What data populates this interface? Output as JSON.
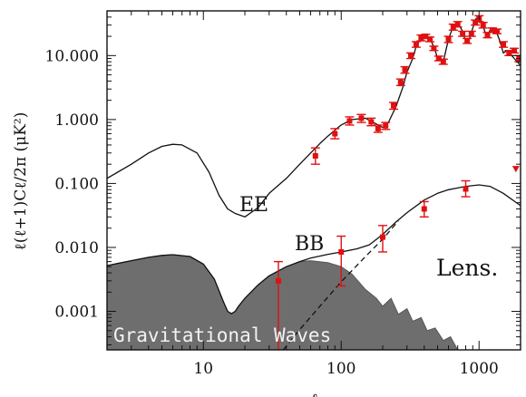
{
  "chart_data": {
    "type": "line",
    "title": "",
    "xlabel": "ℓ",
    "ylabel": "ℓ(ℓ+1)Cℓ/2π (μK²)",
    "xscale": "log",
    "yscale": "log",
    "xlim": [
      2,
      2000
    ],
    "ylim": [
      0.00025,
      50
    ],
    "x_ticks": [
      10,
      100,
      1000
    ],
    "x_tick_labels": [
      "10",
      "100",
      "1000"
    ],
    "y_ticks": [
      0.001,
      0.01,
      0.1,
      1,
      10
    ],
    "y_tick_labels": [
      "0.001",
      "0.010",
      "0.100",
      "1.000",
      "10.000"
    ],
    "annotations": [
      "EE",
      "BB",
      "Lens.",
      "Gravitational Waves"
    ],
    "series": [
      {
        "name": "EE",
        "style": "solid",
        "x": [
          2,
          3,
          4,
          5,
          6,
          7,
          9,
          11,
          13,
          15,
          17,
          20,
          25,
          30,
          40,
          50,
          60,
          70,
          80,
          100,
          120,
          150,
          180,
          200,
          220,
          250,
          280,
          300,
          330,
          350,
          380,
          400,
          450,
          480,
          500,
          550,
          600,
          650,
          700,
          750,
          800,
          850,
          900,
          950,
          1000,
          1050,
          1100,
          1150,
          1200,
          1300,
          1400,
          1500,
          1600,
          1800,
          2000
        ],
        "y": [
          0.12,
          0.2,
          0.3,
          0.38,
          0.41,
          0.4,
          0.3,
          0.15,
          0.065,
          0.04,
          0.034,
          0.03,
          0.042,
          0.07,
          0.12,
          0.2,
          0.3,
          0.42,
          0.55,
          0.82,
          1.0,
          1.05,
          0.85,
          0.75,
          0.9,
          1.6,
          3.2,
          5.5,
          9,
          14,
          19,
          21,
          17,
          12,
          9,
          8,
          18,
          29,
          33,
          25,
          17,
          18,
          27,
          38,
          40,
          33,
          24,
          20,
          25,
          27,
          18,
          11,
          12,
          9,
          7
        ]
      },
      {
        "name": "BB",
        "style": "solid",
        "x": [
          2,
          3,
          4,
          5,
          6,
          8,
          10,
          12,
          14,
          15,
          16,
          17,
          18,
          20,
          25,
          30,
          40,
          50,
          60,
          80,
          100,
          130,
          160,
          200,
          250,
          300,
          400,
          500,
          600,
          800,
          1000,
          1200,
          1500,
          2000
        ],
        "y": [
          0.0052,
          0.0062,
          0.007,
          0.0075,
          0.0077,
          0.0072,
          0.0055,
          0.0032,
          0.0014,
          0.001,
          0.00092,
          0.001,
          0.0012,
          0.0016,
          0.0026,
          0.0036,
          0.005,
          0.006,
          0.0068,
          0.0078,
          0.0085,
          0.0095,
          0.011,
          0.016,
          0.025,
          0.035,
          0.055,
          0.07,
          0.08,
          0.09,
          0.095,
          0.09,
          0.07,
          0.045
        ]
      },
      {
        "name": "Lens.",
        "style": "dashed",
        "x": [
          38,
          50,
          70,
          100,
          150,
          200,
          260
        ],
        "y": [
          0.00025,
          0.00052,
          0.0012,
          0.0029,
          0.0072,
          0.0135,
          0.026
        ]
      },
      {
        "name": "Gravitational Waves",
        "style": "filled",
        "x": [
          2,
          3,
          4,
          5,
          6,
          8,
          10,
          12,
          14,
          15,
          16,
          17,
          18,
          20,
          25,
          30,
          40,
          50,
          60,
          80,
          100,
          120,
          150,
          180,
          200,
          230,
          260,
          300,
          330,
          380,
          420,
          480,
          550,
          620,
          700
        ],
        "y": [
          0.0052,
          0.0062,
          0.007,
          0.0075,
          0.0077,
          0.0072,
          0.0055,
          0.0032,
          0.0014,
          0.001,
          0.00092,
          0.001,
          0.0012,
          0.0016,
          0.0026,
          0.0036,
          0.005,
          0.006,
          0.0062,
          0.0058,
          0.005,
          0.0038,
          0.0022,
          0.0016,
          0.0012,
          0.0016,
          0.0009,
          0.0011,
          0.0007,
          0.0008,
          0.0005,
          0.00055,
          0.00035,
          0.0004,
          0.00025
        ]
      }
    ],
    "points": [
      {
        "x": 35,
        "y": 0.003,
        "lo": 0.00025,
        "hi": 0.006
      },
      {
        "x": 100,
        "y": 0.0085,
        "lo": 0.0025,
        "hi": 0.015
      },
      {
        "x": 200,
        "y": 0.0145,
        "lo": 0.0085,
        "hi": 0.022
      },
      {
        "x": 400,
        "y": 0.04,
        "lo": 0.03,
        "hi": 0.052
      },
      {
        "x": 800,
        "y": 0.082,
        "lo": 0.062,
        "hi": 0.11
      },
      {
        "x": 65,
        "y": 0.27,
        "lo": 0.2,
        "hi": 0.36
      },
      {
        "x": 90,
        "y": 0.6,
        "lo": 0.5,
        "hi": 0.72
      },
      {
        "x": 115,
        "y": 0.95,
        "lo": 0.82,
        "hi": 1.1
      },
      {
        "x": 140,
        "y": 1.05,
        "lo": 0.9,
        "hi": 1.2
      },
      {
        "x": 165,
        "y": 0.92,
        "lo": 0.8,
        "hi": 1.05
      },
      {
        "x": 185,
        "y": 0.72,
        "lo": 0.63,
        "hi": 0.82
      },
      {
        "x": 210,
        "y": 0.8,
        "lo": 0.7,
        "hi": 0.9
      },
      {
        "x": 240,
        "y": 1.65,
        "lo": 1.45,
        "hi": 1.85
      },
      {
        "x": 270,
        "y": 3.8,
        "lo": 3.4,
        "hi": 4.3
      },
      {
        "x": 290,
        "y": 6.0,
        "lo": 5.3,
        "hi": 6.7
      },
      {
        "x": 320,
        "y": 10,
        "lo": 9,
        "hi": 11
      },
      {
        "x": 350,
        "y": 15,
        "lo": 13.5,
        "hi": 16.5
      },
      {
        "x": 380,
        "y": 19,
        "lo": 17,
        "hi": 21
      },
      {
        "x": 410,
        "y": 20,
        "lo": 18.5,
        "hi": 21.5
      },
      {
        "x": 440,
        "y": 18,
        "lo": 16.5,
        "hi": 19.5
      },
      {
        "x": 470,
        "y": 13,
        "lo": 12,
        "hi": 14
      },
      {
        "x": 510,
        "y": 9,
        "lo": 8.3,
        "hi": 9.8
      },
      {
        "x": 550,
        "y": 8,
        "lo": 7.3,
        "hi": 8.8
      },
      {
        "x": 600,
        "y": 18,
        "lo": 16,
        "hi": 20
      },
      {
        "x": 650,
        "y": 28,
        "lo": 25,
        "hi": 31
      },
      {
        "x": 700,
        "y": 31,
        "lo": 28,
        "hi": 34
      },
      {
        "x": 760,
        "y": 22,
        "lo": 20,
        "hi": 24
      },
      {
        "x": 820,
        "y": 17,
        "lo": 15.5,
        "hi": 18.5
      },
      {
        "x": 880,
        "y": 22,
        "lo": 20,
        "hi": 24
      },
      {
        "x": 940,
        "y": 33,
        "lo": 30,
        "hi": 36
      },
      {
        "x": 1000,
        "y": 38,
        "lo": 34,
        "hi": 42
      },
      {
        "x": 1070,
        "y": 30,
        "lo": 27,
        "hi": 33
      },
      {
        "x": 1150,
        "y": 21,
        "lo": 19,
        "hi": 23
      },
      {
        "x": 1250,
        "y": 25,
        "lo": 23,
        "hi": 27
      },
      {
        "x": 1350,
        "y": 24,
        "lo": 22,
        "hi": 26
      },
      {
        "x": 1500,
        "y": 15,
        "lo": 13.5,
        "hi": 16.5
      },
      {
        "x": 1650,
        "y": 11,
        "lo": 10,
        "hi": 12
      },
      {
        "x": 1800,
        "y": 12,
        "lo": 11,
        "hi": 13
      },
      {
        "x": 1950,
        "y": 9,
        "lo": 8,
        "hi": 10
      }
    ],
    "upper_limits": [
      {
        "x": 1850,
        "y": 0.17
      }
    ],
    "colors": {
      "curve": "#111111",
      "points": "#e01010",
      "fill": "#6e6e6e",
      "label_on_fill": "#f2f2f2"
    }
  }
}
